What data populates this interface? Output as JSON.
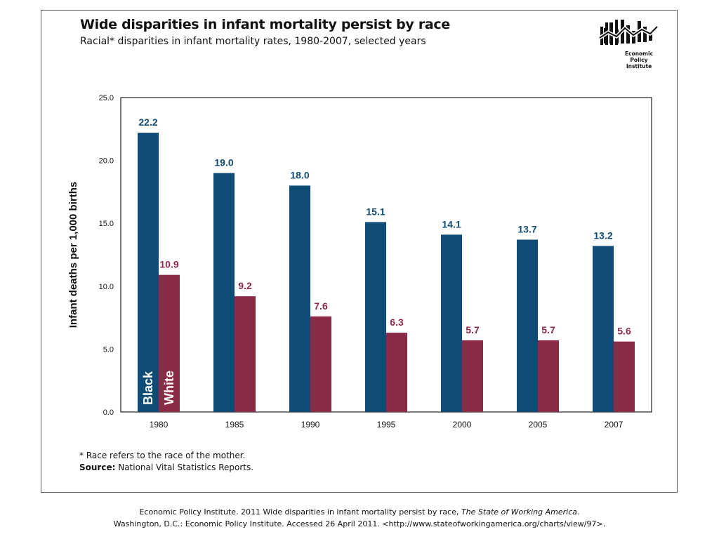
{
  "header": {
    "title": "Wide disparities in infant mortality persist by race",
    "subtitle": "Racial* disparities in infant mortality rates, 1980-2007, selected years"
  },
  "logo": {
    "icon": "epi-bar-chart-logo-icon",
    "line1": "Economic",
    "line2": "Policy",
    "line3": "Institute"
  },
  "chart_data": {
    "type": "bar",
    "title": "Wide disparities in infant mortality persist by race",
    "subtitle": "Racial* disparities in infant mortality rates, 1980-2007, selected years",
    "xlabel": "",
    "ylabel": "Infant deaths per 1,000 births",
    "categories": [
      "1980",
      "1985",
      "1990",
      "1995",
      "2000",
      "2005",
      "2007"
    ],
    "ylim": [
      0,
      25
    ],
    "yticks": [
      "0.0",
      "5.0",
      "10.0",
      "15.0",
      "20.0",
      "25.0"
    ],
    "grid": false,
    "series": [
      {
        "name": "Black",
        "color": "#0f4c75",
        "values": [
          22.2,
          19.0,
          18.0,
          15.1,
          14.1,
          13.7,
          13.2
        ],
        "labels": [
          "22.2",
          "19.0",
          "18.0",
          "15.1",
          "14.1",
          "13.7",
          "13.2"
        ]
      },
      {
        "name": "White",
        "color": "#8b2a45",
        "values": [
          10.9,
          9.2,
          7.6,
          6.3,
          5.7,
          5.7,
          5.6
        ],
        "labels": [
          "10.9",
          "9.2",
          "7.6",
          "6.3",
          "5.7",
          "5.7",
          "5.6"
        ]
      }
    ]
  },
  "footnotes": {
    "race_note": "* Race refers to the race of the mother.",
    "source_label": "Source:",
    "source_text": " National Vital Statistics Reports."
  },
  "citation": {
    "line1_a": "Economic Policy Institute. 2011 Wide disparities in infant mortality persist by race, ",
    "line1_b": "The State of Working America",
    "line1_c": ".",
    "line2": "Washington, D.C.: Economic Policy Institute.  Accessed 26 April 2011.  <http://www.stateofworkingamerica.org/charts/view/97>."
  }
}
